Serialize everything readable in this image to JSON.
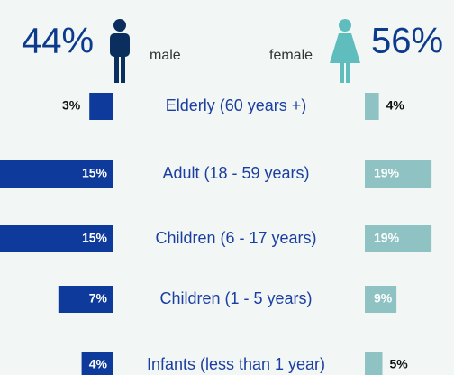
{
  "chart_data": {
    "type": "pyramid",
    "categories": [
      "Elderly (60 years +)",
      "Adult (18 - 59 years)",
      "Children (6 - 17 years)",
      "Children (1 - 5 years)",
      "Infants (less than 1 year)"
    ],
    "series": [
      {
        "name": "male",
        "color": "#0e3a9c",
        "total": 44,
        "total_label": "44%",
        "values": [
          3,
          15,
          15,
          7,
          4
        ],
        "value_labels": [
          "3%",
          "15%",
          "15%",
          "7%",
          "4%"
        ]
      },
      {
        "name": "female",
        "color": "#8fc2c2",
        "total": 56,
        "total_label": "56%",
        "values": [
          4,
          19,
          19,
          9,
          5
        ],
        "value_labels": [
          "4%",
          "19%",
          "19%",
          "9%",
          "5%"
        ]
      }
    ]
  }
}
